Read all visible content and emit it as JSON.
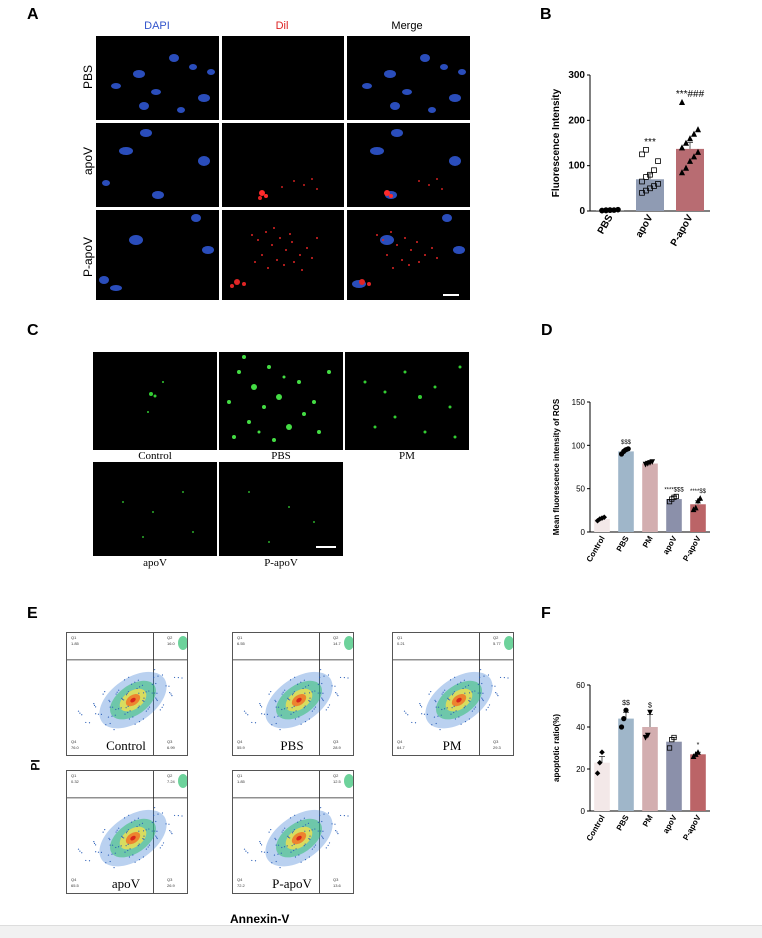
{
  "panels": {
    "A": "A",
    "B": "B",
    "C": "C",
    "D": "D",
    "E": "E",
    "F": "F"
  },
  "panelA": {
    "channels": [
      "DAPI",
      "Dil",
      "Merge"
    ],
    "rows": [
      "PBS",
      "apoV",
      "P-apoV"
    ],
    "colors": {
      "DAPI": "#3355cc",
      "Dil": "#dd2222",
      "Merge": "#000000"
    }
  },
  "panelC": {
    "top_labels": [
      "Control",
      "PBS",
      "PM"
    ],
    "bottom_labels": [
      "apoV",
      "P-apoV"
    ]
  },
  "panelE": {
    "ylabel": "PI",
    "xlabel": "Annexin-V",
    "plots": [
      {
        "label": "Control",
        "q1": "1.85",
        "q2": "16.0",
        "q3": "6.99",
        "q4": "76.0"
      },
      {
        "label": "PBS",
        "q1": "6.55",
        "q2": "14.7",
        "q3": "28.9",
        "q4": "55.9"
      },
      {
        "label": "PM",
        "q1": "0.21",
        "q2": "5.77",
        "q3": "29.3",
        "q4": "64.7"
      },
      {
        "label": "apoV",
        "q1": "0.32",
        "q2": "7.24",
        "q3": "26.9",
        "q4": "65.5"
      },
      {
        "label": "P-apoV",
        "q1": "1.85",
        "q2": "12.5",
        "q3": "13.6",
        "q4": "72.2"
      }
    ],
    "quad_names": {
      "q1": "Q1",
      "q2": "Q2",
      "q3": "Q3",
      "q4": "Q4"
    }
  },
  "chart_data": [
    {
      "id": "B",
      "type": "bar",
      "categories": [
        "PBS",
        "apoV",
        "P-apoV"
      ],
      "values": [
        2,
        70,
        137
      ],
      "errors": [
        1,
        12,
        14
      ],
      "ylabel": "Fluorescence Intensity",
      "ylim": [
        0,
        300
      ],
      "yticks": [
        0,
        100,
        200,
        300
      ],
      "annotations": [
        "",
        "***",
        "***###"
      ],
      "colors": [
        "#9a9a9a",
        "#8f9bb3",
        "#b86c72"
      ],
      "markers": [
        "circle",
        "square",
        "triangle"
      ],
      "points": [
        [
          1,
          1,
          2,
          2,
          3,
          1,
          2,
          2
        ],
        [
          40,
          45,
          50,
          55,
          60,
          65,
          75,
          80,
          90,
          110,
          125,
          135
        ],
        [
          85,
          95,
          110,
          120,
          130,
          140,
          150,
          160,
          170,
          180,
          240
        ]
      ]
    },
    {
      "id": "D",
      "type": "bar",
      "categories": [
        "Control",
        "PBS",
        "PM",
        "apoV",
        "P-apoV"
      ],
      "values": [
        15,
        93,
        79,
        38,
        32
      ],
      "errors": [
        1,
        3,
        2,
        3,
        4
      ],
      "ylabel": "Mean fluorescence intensity of ROS",
      "ylim": [
        0,
        150
      ],
      "yticks": [
        0,
        50,
        100,
        150
      ],
      "annotations": [
        "",
        "$$$",
        "",
        "****$$$",
        "****$$"
      ],
      "colors": [
        "#f3e8e8",
        "#9fb6c9",
        "#d3aeb0",
        "#8b90aa",
        "#bb6467"
      ],
      "markers": [
        "diamond",
        "circle",
        "triangle-down",
        "square",
        "triangle"
      ],
      "points": [
        [
          13,
          15,
          16,
          17
        ],
        [
          90,
          93,
          95,
          96
        ],
        [
          78,
          79,
          80,
          81
        ],
        [
          35,
          38,
          40,
          41
        ],
        [
          26,
          28,
          36,
          39
        ]
      ]
    },
    {
      "id": "F",
      "type": "bar",
      "categories": [
        "Control",
        "PBS",
        "PM",
        "apoV",
        "P-apoV"
      ],
      "values": [
        23,
        44,
        40,
        33,
        27
      ],
      "errors": [
        3,
        3,
        6,
        2,
        1
      ],
      "ylabel": "apoptotic ratio(%)",
      "ylim": [
        0,
        60
      ],
      "yticks": [
        0,
        20,
        40,
        60
      ],
      "annotations": [
        "",
        "$$",
        "$",
        "",
        "*"
      ],
      "colors": [
        "#f3e8e8",
        "#9fb6c9",
        "#d3aeb0",
        "#8b90aa",
        "#bb6467"
      ],
      "markers": [
        "diamond",
        "circle",
        "triangle-down",
        "square",
        "triangle"
      ],
      "points": [
        [
          18,
          23,
          28
        ],
        [
          40,
          44,
          48
        ],
        [
          35,
          36,
          47
        ],
        [
          30,
          34,
          35
        ],
        [
          26,
          27,
          28
        ]
      ]
    }
  ]
}
